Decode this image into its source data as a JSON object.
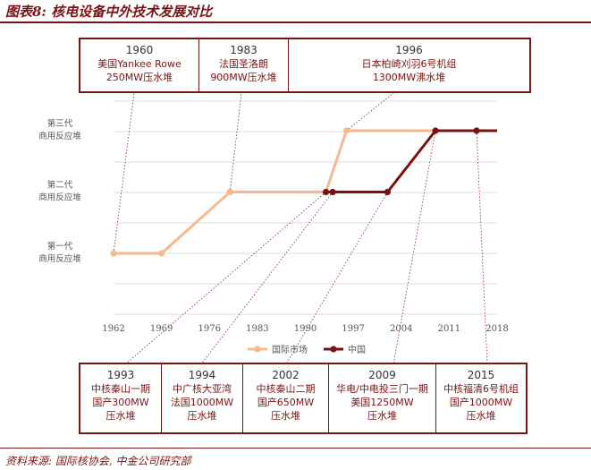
{
  "header": {
    "title": "图表8: 核电设备中外技术发展对比"
  },
  "top_boxes": [
    {
      "year": "1960",
      "lines": [
        "美国Yankee Rowe",
        "250MW压水堆"
      ]
    },
    {
      "year": "1983",
      "lines": [
        "法国圣洛朗",
        "900MW压水堆"
      ]
    },
    {
      "year": "1996",
      "lines": [
        "日本柏崎刈羽6号机组",
        "1300MW沸水堆"
      ]
    }
  ],
  "bottom_boxes": [
    {
      "year": "1993",
      "lines": [
        "中核秦山一期",
        "国产300MW",
        "压水堆"
      ]
    },
    {
      "year": "1994",
      "lines": [
        "中广核大亚湾",
        "法国1000MW",
        "压水堆"
      ]
    },
    {
      "year": "2002",
      "lines": [
        "中核秦山二期",
        "国产650MW",
        "压水堆"
      ]
    },
    {
      "year": "2009",
      "lines": [
        "华电/中电投三门一期",
        "美国1250MW",
        "压水堆"
      ]
    },
    {
      "year": "2015",
      "lines": [
        "中核福清6号机组",
        "国产1000MW",
        "压水堆"
      ]
    }
  ],
  "footer": {
    "source": "资料来源: 国际核协会, 中金公司研究部"
  },
  "chart_data": {
    "type": "line",
    "title": "",
    "xlabel": "",
    "ylabel": "",
    "x_ticks": [
      "1962",
      "1969",
      "1976",
      "1983",
      "1990",
      "1997",
      "2004",
      "2011",
      "2018"
    ],
    "xlim": [
      1962,
      2018
    ],
    "y_ticks": [
      {
        "value": 1,
        "lines": [
          "第一代",
          "商用反应堆"
        ]
      },
      {
        "value": 2,
        "lines": [
          "第二代",
          "商用反应堆"
        ]
      },
      {
        "value": 3,
        "lines": [
          "第三代",
          "商用反应堆"
        ]
      }
    ],
    "grid": true,
    "legend_position": "bottom",
    "series": [
      {
        "name": "国际市场",
        "color": "#f7b98c",
        "points": [
          [
            1962,
            1
          ],
          [
            1969,
            1
          ],
          [
            1979,
            2
          ],
          [
            1993,
            2
          ],
          [
            1996,
            3
          ],
          [
            2018,
            3
          ]
        ]
      },
      {
        "name": "中国",
        "color": "#7b1010",
        "points": [
          [
            1993,
            2
          ],
          [
            1994,
            2
          ],
          [
            2002,
            2
          ],
          [
            2009,
            3
          ],
          [
            2015,
            3
          ],
          [
            2018,
            3
          ]
        ]
      }
    ]
  }
}
